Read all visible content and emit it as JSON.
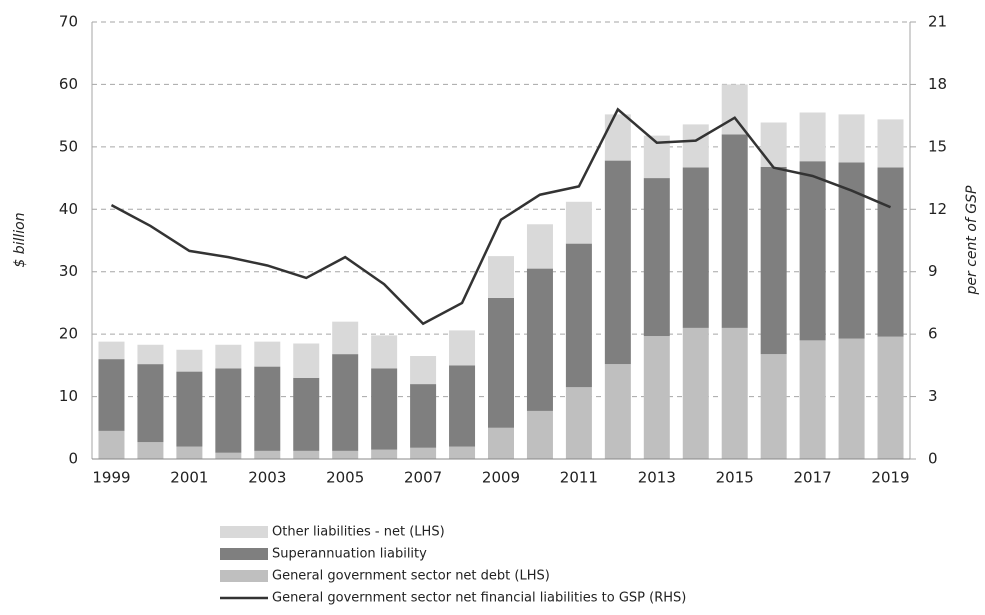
{
  "chart_data": {
    "type": "bar",
    "y_label": "$ billion",
    "y2_label": "per cent of GSP",
    "categories": [
      "1999",
      null,
      "2001",
      null,
      "2003",
      null,
      "2005",
      null,
      "2007",
      null,
      "2009",
      null,
      "2011",
      null,
      "2013",
      null,
      "2015",
      null,
      "2017",
      null,
      "2019"
    ],
    "series": [
      {
        "name": "General government sector net debt (LHS)",
        "color": "#bfbfbf",
        "values": [
          4.5,
          2.7,
          2.0,
          1.0,
          1.3,
          1.3,
          1.3,
          1.5,
          1.8,
          2.0,
          5.0,
          7.7,
          11.5,
          15.2,
          19.7,
          21.0,
          21.0,
          16.8,
          19.0,
          19.3,
          19.6
        ]
      },
      {
        "name": "Superannuation liability",
        "color": "#7f7f7f",
        "values": [
          11.5,
          12.5,
          12.0,
          13.5,
          13.5,
          11.7,
          15.5,
          13.0,
          10.2,
          13.0,
          20.8,
          22.8,
          23.0,
          32.6,
          25.3,
          25.7,
          31.0,
          30.0,
          28.7,
          28.2,
          27.1
        ]
      },
      {
        "name": "Other liabilities - net (LHS)",
        "color": "#d9d9d9",
        "values": [
          2.8,
          3.1,
          3.5,
          3.8,
          4.0,
          5.5,
          5.2,
          5.3,
          4.5,
          5.6,
          6.7,
          7.1,
          6.7,
          7.4,
          6.8,
          6.9,
          8.0,
          7.1,
          7.8,
          7.7,
          7.7
        ]
      },
      {
        "name": "General government sector net financial liabilities to GSP (RHS)",
        "color": "#333333",
        "type": "line",
        "axis": "y2",
        "values": [
          12.2,
          11.2,
          10.0,
          9.7,
          9.3,
          8.7,
          9.7,
          8.4,
          6.5,
          7.5,
          11.5,
          12.7,
          13.1,
          16.8,
          15.2,
          15.3,
          16.4,
          14.0,
          13.6,
          12.9,
          12.1
        ]
      }
    ],
    "ylim": [
      0,
      70
    ],
    "yticks": [
      0,
      10,
      20,
      30,
      40,
      50,
      60,
      70
    ],
    "y2lim": [
      0,
      21
    ],
    "y2ticks": [
      0,
      3,
      6,
      9,
      12,
      15,
      18,
      21
    ],
    "grid": true,
    "stacked": true
  }
}
